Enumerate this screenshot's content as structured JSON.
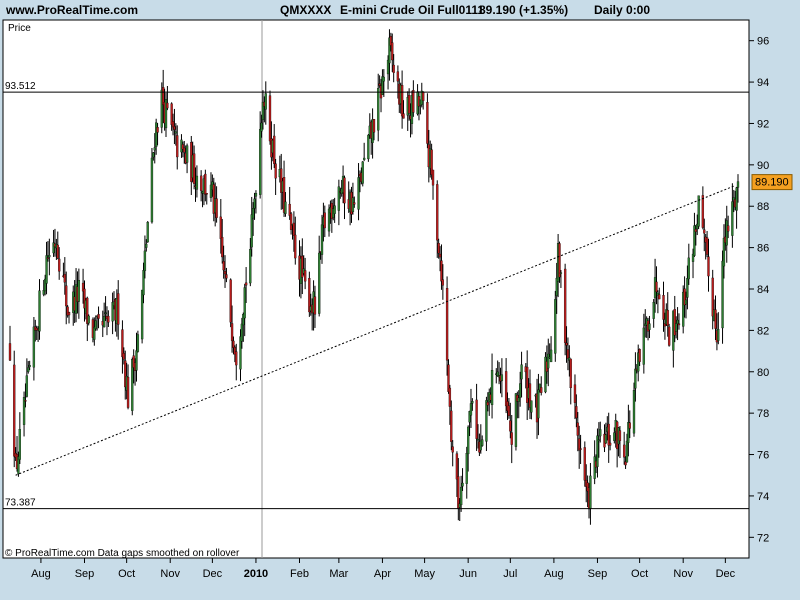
{
  "header": {
    "site": "www.ProRealTime.com",
    "symbol": "QMXXXX",
    "instrument": "E-mini Crude Oil Full0111",
    "last_change": "89.190 (+1.35%)",
    "period": "Daily  0:00"
  },
  "footer": {
    "copyright": "© ProRealTime.com  Data gaps smoothed on rollover"
  },
  "colors": {
    "background": "#c8dce8",
    "plot": "#ffffff",
    "up_candle": "#2e7d32",
    "down_candle": "#b71c1c",
    "price_tag": "#f4a020"
  },
  "chart_data": {
    "type": "candlestick",
    "title": "",
    "ylabel": "Price",
    "ylim": [
      71,
      97
    ],
    "y_ticks": [
      "72",
      "74",
      "76",
      "78",
      "80",
      "82",
      "84",
      "86",
      "88",
      "90",
      "92",
      "94",
      "96"
    ],
    "x_ticks": [
      "Aug",
      "Sep",
      "Oct",
      "Nov",
      "Dec",
      "2010",
      "Feb",
      "Mar",
      "Apr",
      "May",
      "Jun",
      "Jul",
      "Aug",
      "Sep",
      "Oct",
      "Nov",
      "Dec"
    ],
    "x_range": [
      "2009-07-10",
      "2010-12-10"
    ],
    "last_price": "89.190",
    "horizontal_lines": [
      {
        "label": "93.512",
        "value": 93.512
      },
      {
        "label": "73.387",
        "value": 73.387
      }
    ],
    "trendline": {
      "start": {
        "date": "2009-07-14",
        "value": 75.0
      },
      "end": {
        "date": "2010-12-08",
        "value": 89.0
      }
    },
    "anchors": [
      [
        "2009-07-10",
        81.2
      ],
      [
        "2009-07-14",
        75.2
      ],
      [
        "2009-07-24",
        80.0
      ],
      [
        "2009-08-05",
        85.5
      ],
      [
        "2009-08-12",
        86.5
      ],
      [
        "2009-08-20",
        83.0
      ],
      [
        "2009-08-28",
        83.8
      ],
      [
        "2009-09-08",
        81.8
      ],
      [
        "2009-09-15",
        82.2
      ],
      [
        "2009-09-25",
        83.0
      ],
      [
        "2009-10-02",
        78.8
      ],
      [
        "2009-10-10",
        82.0
      ],
      [
        "2009-10-21",
        91.5
      ],
      [
        "2009-10-26",
        93.2
      ],
      [
        "2009-11-05",
        91.0
      ],
      [
        "2009-11-20",
        89.5
      ],
      [
        "2009-12-01",
        88.5
      ],
      [
        "2009-12-12",
        83.5
      ],
      [
        "2009-12-18",
        81.0
      ],
      [
        "2009-12-28",
        86.0
      ],
      [
        "2010-01-06",
        93.5
      ],
      [
        "2010-01-15",
        90.0
      ],
      [
        "2010-01-25",
        87.0
      ],
      [
        "2010-02-05",
        84.0
      ],
      [
        "2010-02-12",
        83.0
      ],
      [
        "2010-02-18",
        87.0
      ],
      [
        "2010-03-01",
        89.0
      ],
      [
        "2010-03-12",
        88.0
      ],
      [
        "2010-03-24",
        91.5
      ],
      [
        "2010-04-06",
        95.5
      ],
      [
        "2010-04-16",
        92.5
      ],
      [
        "2010-04-29",
        93.0
      ],
      [
        "2010-05-05",
        90.0
      ],
      [
        "2010-05-13",
        85.0
      ],
      [
        "2010-05-20",
        77.0
      ],
      [
        "2010-05-25",
        73.5
      ],
      [
        "2010-06-04",
        79.0
      ],
      [
        "2010-06-09",
        76.0
      ],
      [
        "2010-06-21",
        80.5
      ],
      [
        "2010-07-02",
        76.8
      ],
      [
        "2010-07-09",
        80.0
      ],
      [
        "2010-07-20",
        78.0
      ],
      [
        "2010-07-30",
        81.5
      ],
      [
        "2010-08-04",
        85.5
      ],
      [
        "2010-08-13",
        79.5
      ],
      [
        "2010-08-25",
        73.7
      ],
      [
        "2010-09-02",
        76.5
      ],
      [
        "2010-09-14",
        77.0
      ],
      [
        "2010-09-21",
        76.2
      ],
      [
        "2010-09-28",
        79.5
      ],
      [
        "2010-10-08",
        83.0
      ],
      [
        "2010-10-14",
        84.5
      ],
      [
        "2010-10-22",
        82.0
      ],
      [
        "2010-11-01",
        83.2
      ],
      [
        "2010-11-12",
        88.0
      ],
      [
        "2010-11-17",
        85.5
      ],
      [
        "2010-11-25",
        82.0
      ],
      [
        "2010-11-30",
        86.0
      ],
      [
        "2010-12-10",
        89.19
      ]
    ]
  }
}
